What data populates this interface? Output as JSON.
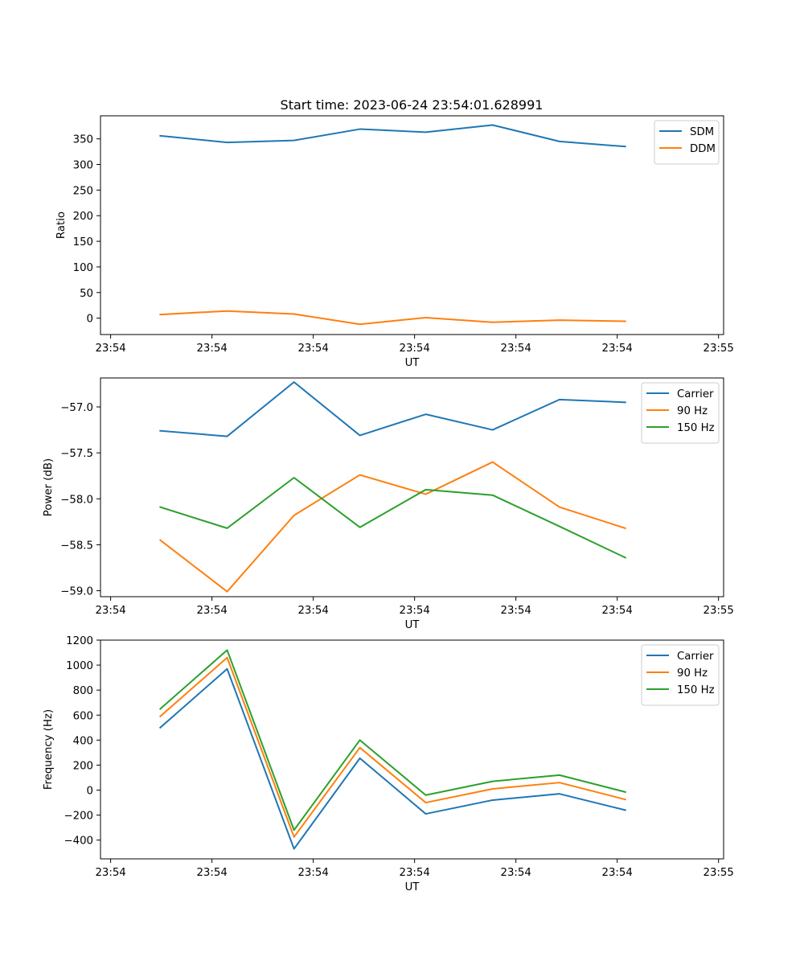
{
  "figure_title": "Start time: 2023-06-24 23:54:01.628991",
  "colors": {
    "c0": "#1f77b4",
    "c1": "#ff7f0e",
    "c2": "#2ca02c"
  },
  "chart_data": [
    {
      "type": "line",
      "title": "Start time: 2023-06-24 23:54:01.628991",
      "xlabel": "UT",
      "ylabel": "Ratio",
      "x_tick_labels": [
        "23:54",
        "23:54",
        "23:54",
        "23:54",
        "23:54",
        "23:54",
        "23:55"
      ],
      "x_tick_positions": [
        0,
        1,
        2,
        3,
        4,
        5,
        6
      ],
      "xlim": [
        -0.1,
        6.05
      ],
      "ylim": [
        -32,
        395
      ],
      "yticks": [
        0,
        50,
        100,
        150,
        200,
        250,
        300,
        350
      ],
      "x": [
        0.49,
        1.15,
        1.81,
        2.46,
        3.11,
        3.77,
        4.43,
        5.08
      ],
      "series": [
        {
          "name": "SDM",
          "color": "#1f77b4",
          "values": [
            356,
            343,
            347,
            369,
            363,
            377,
            345,
            335
          ]
        },
        {
          "name": "DDM",
          "color": "#ff7f0e",
          "values": [
            7,
            14,
            8,
            -12,
            1,
            -8,
            -4,
            -6
          ]
        }
      ],
      "legend": "top-right",
      "grid": false
    },
    {
      "type": "line",
      "title": "",
      "xlabel": "UT",
      "ylabel": "Power (dB)",
      "x_tick_labels": [
        "23:54",
        "23:54",
        "23:54",
        "23:54",
        "23:54",
        "23:54",
        "23:55"
      ],
      "x_tick_positions": [
        0,
        1,
        2,
        3,
        4,
        5,
        6
      ],
      "xlim": [
        -0.1,
        6.05
      ],
      "ylim": [
        -59.065,
        -56.685
      ],
      "yticks": [
        -59.0,
        -58.5,
        -58.0,
        -57.5,
        -57.0
      ],
      "ytick_labels": [
        "−59.0",
        "−58.5",
        "−58.0",
        "−57.5",
        "−57.0"
      ],
      "x": [
        0.49,
        1.15,
        1.81,
        2.46,
        3.11,
        3.77,
        4.43,
        5.08
      ],
      "series": [
        {
          "name": "Carrier",
          "color": "#1f77b4",
          "values": [
            -57.26,
            -57.32,
            -56.73,
            -57.31,
            -57.08,
            -57.25,
            -56.92,
            -56.95
          ]
        },
        {
          "name": "90 Hz",
          "color": "#ff7f0e",
          "values": [
            -58.45,
            -59.01,
            -58.18,
            -57.74,
            -57.95,
            -57.6,
            -58.09,
            -58.32
          ]
        },
        {
          "name": "150 Hz",
          "color": "#2ca02c",
          "values": [
            -58.09,
            -58.32,
            -57.77,
            -58.31,
            -57.9,
            -57.96,
            -58.3,
            -58.64
          ]
        }
      ],
      "legend": "top-right",
      "grid": false
    },
    {
      "type": "line",
      "title": "",
      "xlabel": "UT",
      "ylabel": "Frequency (Hz)",
      "x_tick_labels": [
        "23:54",
        "23:54",
        "23:54",
        "23:54",
        "23:54",
        "23:54",
        "23:55"
      ],
      "x_tick_positions": [
        0,
        1,
        2,
        3,
        4,
        5,
        6
      ],
      "xlim": [
        -0.1,
        6.05
      ],
      "ylim": [
        -550,
        1200
      ],
      "yticks": [
        -400,
        -200,
        0,
        200,
        400,
        600,
        800,
        1000,
        1200
      ],
      "ytick_labels": [
        "−400",
        "−200",
        "0",
        "200",
        "400",
        "600",
        "800",
        "1000",
        "1200"
      ],
      "x": [
        0.49,
        1.15,
        1.81,
        2.46,
        3.11,
        3.77,
        4.43,
        5.08
      ],
      "series": [
        {
          "name": "Carrier",
          "color": "#1f77b4",
          "values": [
            500,
            970,
            -470,
            255,
            -190,
            -80,
            -30,
            -160
          ]
        },
        {
          "name": "90 Hz",
          "color": "#ff7f0e",
          "values": [
            590,
            1060,
            -375,
            340,
            -100,
            10,
            60,
            -75
          ]
        },
        {
          "name": "150 Hz",
          "color": "#2ca02c",
          "values": [
            650,
            1120,
            -320,
            400,
            -40,
            70,
            120,
            -15
          ]
        }
      ],
      "legend": "top-right",
      "grid": false
    }
  ]
}
